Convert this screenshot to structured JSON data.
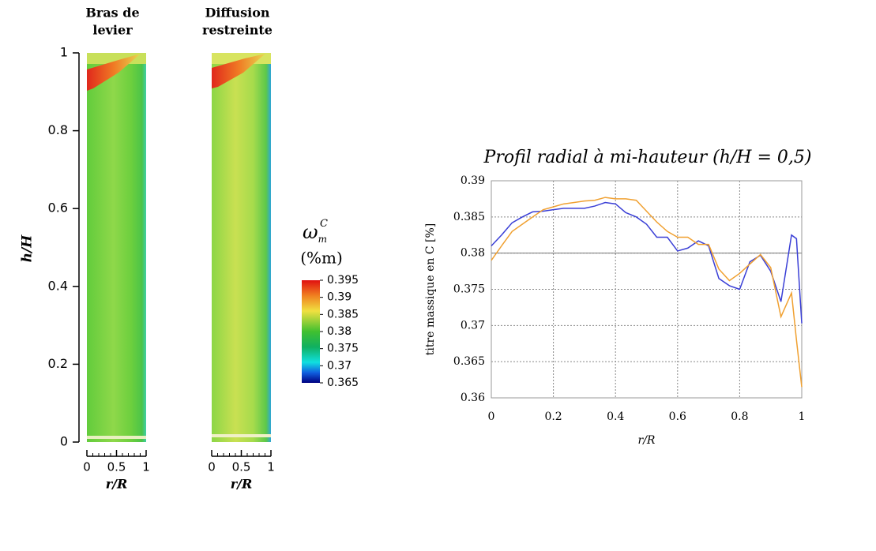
{
  "chart_data": [
    {
      "type": "contour",
      "title_lines": [
        "Bras de",
        "levier"
      ],
      "x_label": "r/R",
      "y_label": "h/H",
      "xlim": [
        0,
        1
      ],
      "xticks": [
        0,
        0.5,
        1
      ],
      "ylim": [
        0,
        1
      ],
      "yticks": [
        0,
        0.2,
        0.4,
        0.6,
        0.8,
        1
      ]
    },
    {
      "type": "contour",
      "title_lines": [
        "Diffusion",
        "restreinte"
      ],
      "x_label": "r/R",
      "xlim": [
        0,
        1
      ],
      "xticks": [
        0,
        0.5,
        1
      ],
      "ylim": [
        0,
        1
      ],
      "colorbar": {
        "symbol": "ω",
        "subscript": "m",
        "superscript": "C",
        "label": "(%m)",
        "lim": [
          0.365,
          0.395
        ],
        "ticks": [
          0.365,
          0.37,
          0.375,
          0.38,
          0.385,
          0.39,
          0.395
        ]
      }
    },
    {
      "type": "line",
      "title": "Profil radial à mi-hauteur (h/H = 0,5)",
      "x_label": "r/R",
      "y_label": "titre massique en C [%]",
      "xlim": [
        0,
        1
      ],
      "xticks": [
        0,
        0.2,
        0.4,
        0.6,
        0.8,
        1
      ],
      "ylim": [
        0.36,
        0.39
      ],
      "yticks": [
        0.36,
        0.365,
        0.37,
        0.375,
        0.38,
        0.385,
        0.39
      ],
      "grid": true,
      "reference_line": 0.38,
      "x": [
        0,
        0.033,
        0.067,
        0.1,
        0.133,
        0.167,
        0.2,
        0.233,
        0.267,
        0.3,
        0.333,
        0.367,
        0.4,
        0.433,
        0.467,
        0.5,
        0.533,
        0.567,
        0.6,
        0.633,
        0.667,
        0.7,
        0.733,
        0.767,
        0.8,
        0.833,
        0.867,
        0.9,
        0.933,
        0.967,
        0.983,
        1.0
      ],
      "series": [
        {
          "color": "#3a3fd6",
          "values": [
            0.381,
            0.3825,
            0.3842,
            0.385,
            0.3857,
            0.3858,
            0.386,
            0.3862,
            0.3862,
            0.3862,
            0.3865,
            0.387,
            0.3868,
            0.3856,
            0.385,
            0.384,
            0.3822,
            0.3822,
            0.3803,
            0.3807,
            0.3817,
            0.381,
            0.3765,
            0.3755,
            0.375,
            0.3788,
            0.3797,
            0.3775,
            0.3733,
            0.3825,
            0.382,
            0.3703
          ]
        },
        {
          "color": "#f0a030",
          "values": [
            0.379,
            0.381,
            0.383,
            0.384,
            0.385,
            0.386,
            0.3864,
            0.3868,
            0.387,
            0.3872,
            0.3873,
            0.3877,
            0.3875,
            0.3875,
            0.3873,
            0.3858,
            0.3843,
            0.383,
            0.3822,
            0.3822,
            0.3812,
            0.3812,
            0.3778,
            0.3762,
            0.3772,
            0.3785,
            0.3798,
            0.378,
            0.3712,
            0.3745,
            0.368,
            0.3615
          ]
        }
      ]
    }
  ]
}
